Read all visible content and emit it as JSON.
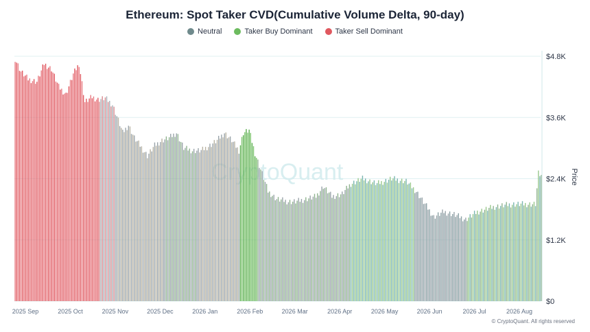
{
  "chart_data": {
    "type": "bar",
    "title": "Ethereum: Spot Taker CVD(Cumulative Volume Delta, 90-day)",
    "ylabel": "Price",
    "ylim": [
      0,
      4800
    ],
    "y_ticks": [
      "$0",
      "$1.2K",
      "$2.4K",
      "$3.6K",
      "$4.8K"
    ],
    "y_tick_values": [
      0,
      1200,
      2400,
      3600,
      4800
    ],
    "x_ticks": [
      "2025 Sep",
      "2025 Oct",
      "2025 Nov",
      "2025 Dec",
      "2026 Jan",
      "2026 Feb",
      "2026 Mar",
      "2026 Apr",
      "2026 May",
      "2026 Jun",
      "2026 Jul",
      "2026 Aug"
    ],
    "watermark": "CryptoQuant",
    "grid": true,
    "legend_position": "top-center",
    "legend": [
      {
        "name": "Neutral",
        "color": "#6f8a8c"
      },
      {
        "name": "Taker Buy Dominant",
        "color": "#6dbb5f"
      },
      {
        "name": "Taker Sell Dominant",
        "color": "#e0585f"
      }
    ],
    "segments": [
      {
        "start": "2025-08-24",
        "end": "2025-10-20",
        "state": "sell",
        "shades": [
          "#e87a82",
          "#e0585f"
        ]
      },
      {
        "start": "2025-10-21",
        "end": "2025-11-01",
        "state": "neutral",
        "shades": [
          "#d88a90",
          "#a8b2b8"
        ]
      },
      {
        "start": "2025-11-02",
        "end": "2025-12-04",
        "state": "neutral",
        "shades": [
          "#9aa4aa",
          "#b8b3a3"
        ]
      },
      {
        "start": "2025-12-05",
        "end": "2025-12-27",
        "state": "neutral",
        "shades": [
          "#8fb38f",
          "#9aa4aa"
        ]
      },
      {
        "start": "2025-12-28",
        "end": "2026-01-25",
        "state": "neutral",
        "shades": [
          "#9aa4aa",
          "#b8b3a3"
        ]
      },
      {
        "start": "2026-01-26",
        "end": "2026-02-06",
        "state": "buy",
        "shades": [
          "#7cc46d",
          "#5aae4e"
        ]
      },
      {
        "start": "2026-02-07",
        "end": "2026-03-05",
        "state": "neutral",
        "shades": [
          "#9aa4aa",
          "#8fb38f"
        ]
      },
      {
        "start": "2026-03-06",
        "end": "2026-04-11",
        "state": "neutral",
        "shades": [
          "#8fb38f",
          "#9aa4aa"
        ]
      },
      {
        "start": "2026-04-12",
        "end": "2026-05-25",
        "state": "buy",
        "shades": [
          "#98c88c",
          "#7ab6b0"
        ]
      },
      {
        "start": "2026-05-26",
        "end": "2026-06-30",
        "state": "neutral",
        "shades": [
          "#9aa4aa",
          "#8aa0a4"
        ]
      },
      {
        "start": "2026-07-01",
        "end": "2026-08-21",
        "state": "buy",
        "shades": [
          "#98c88c",
          "#7ab6b0",
          "#8fb38f"
        ]
      }
    ],
    "price_series": {
      "x_start": "2025-08-24",
      "interval_days": 1,
      "knots": [
        [
          "2025-08-24",
          4750
        ],
        [
          "2025-08-28",
          4500
        ],
        [
          "2025-09-02",
          4350
        ],
        [
          "2025-09-08",
          4300
        ],
        [
          "2025-09-13",
          4650
        ],
        [
          "2025-09-18",
          4550
        ],
        [
          "2025-09-23",
          4200
        ],
        [
          "2025-09-28",
          4050
        ],
        [
          "2025-10-03",
          4450
        ],
        [
          "2025-10-07",
          4650
        ],
        [
          "2025-10-11",
          3900
        ],
        [
          "2025-10-16",
          4000
        ],
        [
          "2025-10-20",
          3950
        ],
        [
          "2025-10-25",
          3980
        ],
        [
          "2025-10-30",
          3850
        ],
        [
          "2025-11-03",
          3550
        ],
        [
          "2025-11-06",
          3300
        ],
        [
          "2025-11-10",
          3450
        ],
        [
          "2025-11-14",
          3200
        ],
        [
          "2025-11-18",
          3050
        ],
        [
          "2025-11-23",
          2850
        ],
        [
          "2025-11-28",
          3050
        ],
        [
          "2025-12-03",
          3150
        ],
        [
          "2025-12-08",
          3200
        ],
        [
          "2025-12-13",
          3300
        ],
        [
          "2025-12-18",
          3000
        ],
        [
          "2025-12-24",
          2950
        ],
        [
          "2025-12-30",
          2950
        ],
        [
          "2026-01-05",
          3050
        ],
        [
          "2026-01-10",
          3150
        ],
        [
          "2026-01-15",
          3300
        ],
        [
          "2026-01-20",
          3150
        ],
        [
          "2026-01-25",
          2950
        ],
        [
          "2026-01-28",
          3300
        ],
        [
          "2026-02-01",
          3350
        ],
        [
          "2026-02-05",
          2900
        ],
        [
          "2026-02-10",
          2500
        ],
        [
          "2026-02-14",
          2150
        ],
        [
          "2026-02-20",
          2000
        ],
        [
          "2026-02-28",
          1950
        ],
        [
          "2026-03-05",
          1950
        ],
        [
          "2026-03-12",
          2000
        ],
        [
          "2026-03-19",
          2050
        ],
        [
          "2026-03-24",
          2250
        ],
        [
          "2026-03-30",
          2050
        ],
        [
          "2026-04-06",
          2100
        ],
        [
          "2026-04-12",
          2300
        ],
        [
          "2026-04-20",
          2400
        ],
        [
          "2026-04-30",
          2300
        ],
        [
          "2026-05-10",
          2400
        ],
        [
          "2026-05-20",
          2350
        ],
        [
          "2026-05-27",
          2150
        ],
        [
          "2026-06-02",
          1900
        ],
        [
          "2026-06-08",
          1650
        ],
        [
          "2026-06-15",
          1750
        ],
        [
          "2026-06-22",
          1700
        ],
        [
          "2026-06-30",
          1600
        ],
        [
          "2026-07-08",
          1750
        ],
        [
          "2026-07-20",
          1850
        ],
        [
          "2026-08-01",
          1900
        ],
        [
          "2026-08-10",
          1900
        ],
        [
          "2026-08-17",
          1900
        ],
        [
          "2026-08-19",
          2500
        ],
        [
          "2026-08-21",
          2450
        ]
      ]
    }
  },
  "footer": {
    "credit": "© CryptoQuant. All rights reserved"
  }
}
